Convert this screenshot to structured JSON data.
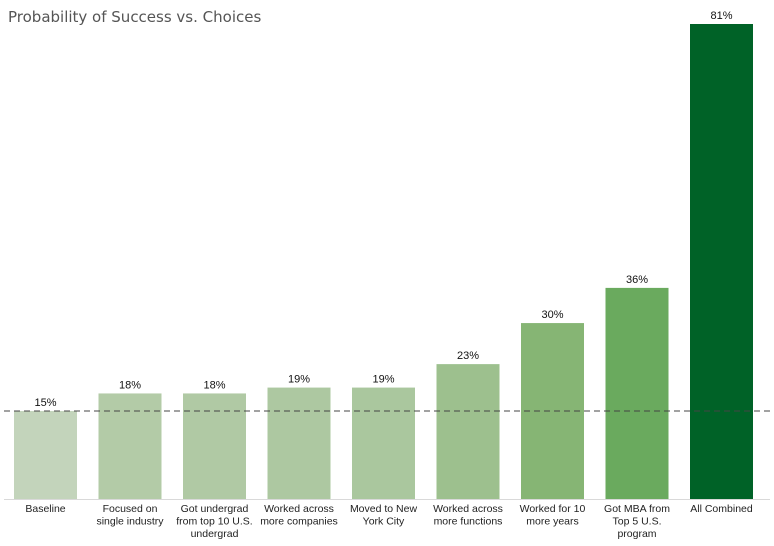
{
  "chart_data": {
    "type": "bar",
    "title": "Probability of Success vs. Choices",
    "categories": [
      [
        "Baseline"
      ],
      [
        "Focused on",
        "single industry"
      ],
      [
        "Got undergrad",
        "from top 10 U.S.",
        "undergrad"
      ],
      [
        "Worked across",
        "more companies"
      ],
      [
        "Moved to New",
        "York City"
      ],
      [
        "Worked across",
        "more functions"
      ],
      [
        "Worked for 10",
        "more years"
      ],
      [
        "Got MBA from",
        "Top 5 U.S.",
        "program"
      ],
      [
        "All Combined"
      ]
    ],
    "values": [
      15,
      18,
      18,
      19,
      19,
      23,
      30,
      36,
      81
    ],
    "value_labels": [
      "15%",
      "18%",
      "18%",
      "19%",
      "19%",
      "23%",
      "30%",
      "36%",
      "81%"
    ],
    "bar_colors": [
      "#c3d4bb",
      "#b3cba7",
      "#b0c9a4",
      "#adc8a1",
      "#aac79e",
      "#9dc08e",
      "#86b574",
      "#6aaa5e",
      "#006227"
    ],
    "reference_line": {
      "value": 15,
      "style": "dashed"
    },
    "ylim": [
      0,
      81
    ],
    "grid": false,
    "legend": "none",
    "xlabel": "",
    "ylabel": ""
  }
}
